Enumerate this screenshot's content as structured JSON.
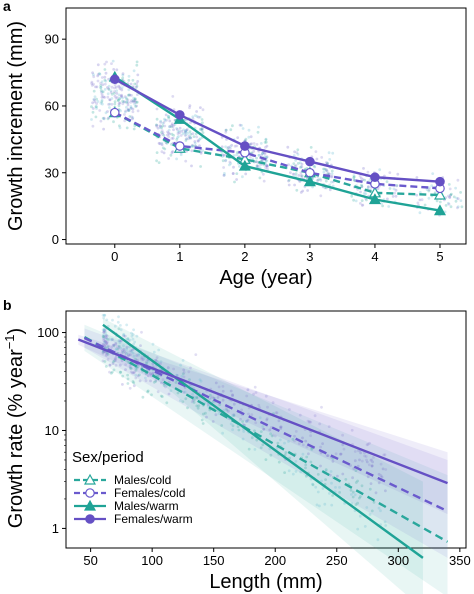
{
  "chart_data": [
    {
      "panel": "a",
      "type": "line",
      "xlabel": "Age (year)",
      "ylabel": "Growth increment (mm)",
      "xlim": [
        -0.75,
        5.4
      ],
      "ylim": [
        -2,
        104
      ],
      "xticks": [
        0,
        1,
        2,
        3,
        4,
        5
      ],
      "yticks": [
        0,
        30,
        60,
        90
      ],
      "grid": false,
      "x": [
        0,
        1,
        2,
        3,
        4,
        5
      ],
      "series": [
        {
          "name": "Males/cold",
          "color": "#29a79c",
          "line": "dashed",
          "marker": "open-triangle",
          "values": [
            57,
            41,
            36,
            30,
            21,
            20
          ]
        },
        {
          "name": "Females/cold",
          "color": "#6a5acd",
          "line": "dashed",
          "marker": "open-circle",
          "values": [
            57,
            42,
            39,
            30,
            25,
            23
          ]
        },
        {
          "name": "Males/warm",
          "color": "#1fa396",
          "line": "solid",
          "marker": "filled-triangle",
          "values": [
            73,
            54,
            33,
            26,
            18,
            13
          ]
        },
        {
          "name": "Females/warm",
          "color": "#6550c4",
          "line": "solid",
          "marker": "filled-circle",
          "values": [
            72,
            56,
            42,
            35,
            28,
            26
          ]
        }
      ],
      "raw_points": "jittered semi-transparent individual measurements around each age"
    },
    {
      "panel": "b",
      "type": "line",
      "xlabel": "Length (mm)",
      "ylabel": "Growth rate (% year⁻¹)",
      "xlim": [
        30,
        355
      ],
      "ylim_log10": [
        -0.2,
        2.22
      ],
      "yscale": "log",
      "xticks": [
        50,
        100,
        150,
        200,
        250,
        300,
        350
      ],
      "yticks": [
        1,
        10,
        100
      ],
      "grid": false,
      "legend": {
        "title": "Sex/period",
        "position": "bottom-left",
        "entries": [
          "Males/cold",
          "Females/cold",
          "Males/warm",
          "Females/warm"
        ]
      },
      "series": [
        {
          "name": "Males/cold",
          "color": "#29a79c",
          "line": "dashed",
          "x": [
            45,
            340
          ],
          "values": [
            90,
            0.73
          ],
          "ci_upper": [
            120,
            3.5
          ],
          "ci_lower": [
            65,
            0.2
          ]
        },
        {
          "name": "Females/cold",
          "color": "#6a5acd",
          "line": "dashed",
          "x": [
            45,
            340
          ],
          "values": [
            88,
            1.5
          ],
          "ci_upper": [
            110,
            5
          ],
          "ci_lower": [
            70,
            0.5
          ]
        },
        {
          "name": "Males/warm",
          "color": "#1fa396",
          "line": "solid",
          "x": [
            60,
            320
          ],
          "values": [
            120,
            0.5
          ],
          "ci_upper": [
            140,
            3
          ],
          "ci_lower": [
            100,
            0.15
          ]
        },
        {
          "name": "Females/warm",
          "color": "#6550c4",
          "line": "solid",
          "x": [
            40,
            340
          ],
          "values": [
            85,
            2.9
          ],
          "ci_upper": [
            95,
            6
          ],
          "ci_lower": [
            75,
            1.4
          ]
        }
      ],
      "raw_points": "semi-transparent individual measurements"
    }
  ],
  "labels": {
    "panel_a": "a",
    "panel_b": "b",
    "a_xlabel": "Age (year)",
    "a_ylabel": "Growth increment (mm)",
    "b_xlabel": "Length (mm)",
    "b_ylabel_main": "Growth rate (% year",
    "b_ylabel_sup": "−1",
    "b_ylabel_close": ")",
    "legend_title": "Sex/period"
  }
}
